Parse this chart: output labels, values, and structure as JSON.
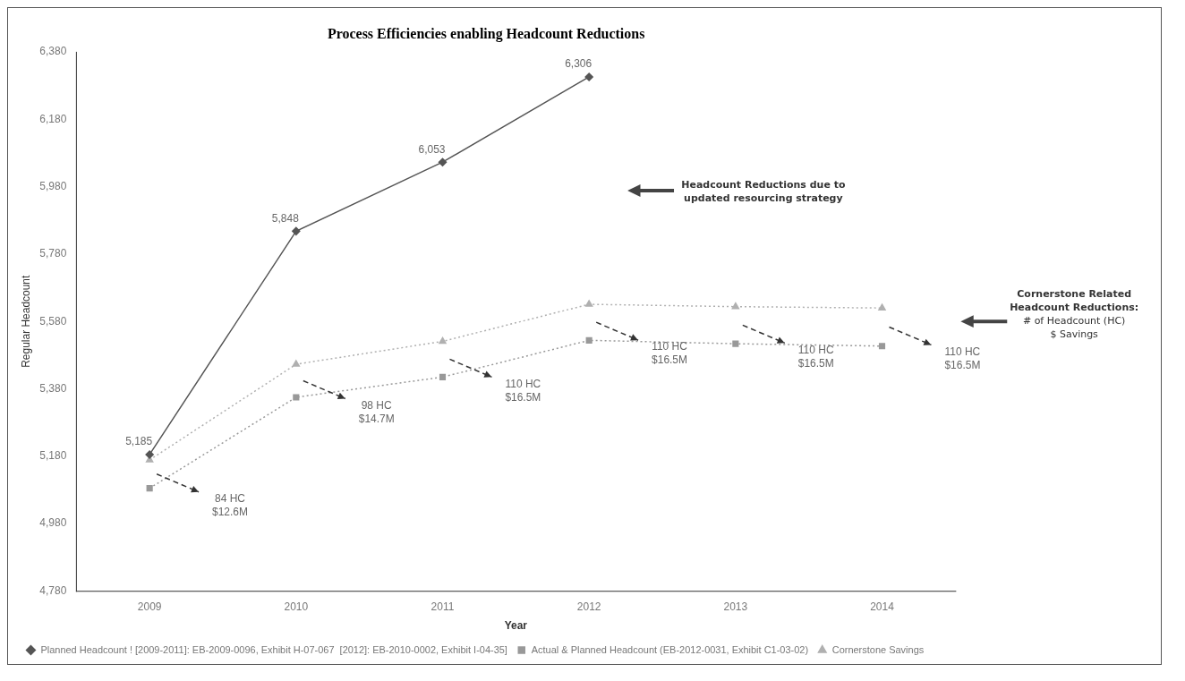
{
  "chart_data": {
    "type": "line",
    "title": "Process Efficiencies enabling Headcount Reductions",
    "xlabel": "Year",
    "ylabel": "Regular Headcount",
    "categories": [
      "2009",
      "2010",
      "2011",
      "2012",
      "2013",
      "2014"
    ],
    "series": [
      {
        "name": "Planned Headcount ! [2009-2011]: EB-2009-0096, Exhibit H-07-067  [2012]: EB-2010-0002, Exhibit I-04-35]",
        "color": "#555555",
        "marker": "diamond",
        "line_style": "solid",
        "values": [
          5185,
          5848,
          6053,
          6306,
          null,
          null
        ],
        "value_labels": [
          "5,185",
          "5,848",
          "6,053",
          "6,306",
          null,
          null
        ]
      },
      {
        "name": "Actual & Planned Headcount (EB-2012-0031, Exhibit C1-03-02)",
        "color": "#999999",
        "marker": "square",
        "line_style": "dotted",
        "values": [
          5085,
          5355,
          5415,
          5524,
          5514,
          5507
        ]
      },
      {
        "name": "Cornerstone Savings",
        "color": "#b0b0b0",
        "marker": "triangle",
        "line_style": "dotted",
        "values": [
          5169,
          5453,
          5521,
          5631,
          5624,
          5620
        ]
      }
    ],
    "ylim": [
      4780,
      6380
    ],
    "yticks": [
      {
        "value": 4780,
        "label": "4,780"
      },
      {
        "value": 4980,
        "label": "4,980"
      },
      {
        "value": 5180,
        "label": "5,180"
      },
      {
        "value": 5380,
        "label": "5,380"
      },
      {
        "value": 5580,
        "label": "5,580"
      },
      {
        "value": 5780,
        "label": "5,780"
      },
      {
        "value": 5980,
        "label": "5,980"
      },
      {
        "value": 6180,
        "label": "6,180"
      },
      {
        "value": 6380,
        "label": "6,380"
      }
    ],
    "grid": false,
    "legend": "bottom",
    "annotations": [
      "84 HC\n$12.6M",
      "98 HC\n$14.7M",
      "110 HC\n$16.5M",
      "110 HC\n$16.5M",
      "110 HC\n$16.5M",
      "110 HC\n$16.5M",
      "Headcount Reductions due to\nupdated resourcing strategy",
      "Cornerstone Related\nHeadcount Reductions:\n# of Headcount (HC)\n$ Savings"
    ]
  }
}
